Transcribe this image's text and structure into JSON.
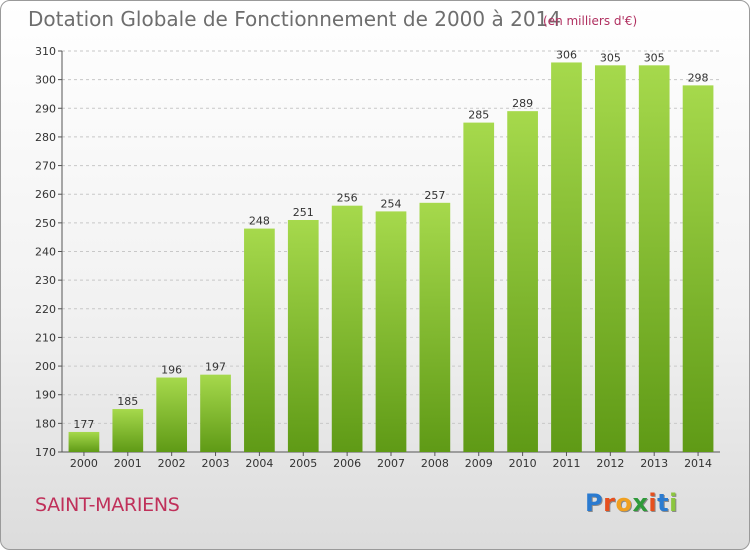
{
  "header": {
    "title": "Dotation Globale de Fonctionnement de 2000 à 2014",
    "subtitle": "(en milliers d'€)"
  },
  "footer": {
    "commune": "SAINT-MARIENS",
    "logo_letters": [
      "P",
      "r",
      "o",
      "x",
      "i",
      "t",
      "i"
    ],
    "logo_colors": [
      "#2b7bd0",
      "#e6501e",
      "#f0a020",
      "#2f9a3a",
      "#e6501e",
      "#2b7bd0",
      "#8cc63f"
    ]
  },
  "colors": {
    "bar_light": "#a6d94c",
    "bar_dark": "#5f9a16",
    "grid": "#c8c8c8"
  },
  "chart_data": {
    "type": "bar",
    "title": "Dotation Globale de Fonctionnement de 2000 à 2014",
    "subtitle": "(en milliers d'€)",
    "xlabel": "",
    "ylabel": "",
    "categories": [
      "2000",
      "2001",
      "2002",
      "2003",
      "2004",
      "2005",
      "2006",
      "2007",
      "2008",
      "2009",
      "2010",
      "2011",
      "2012",
      "2013",
      "2014"
    ],
    "values": [
      177,
      185,
      196,
      197,
      248,
      251,
      256,
      254,
      257,
      285,
      289,
      306,
      305,
      305,
      298
    ],
    "ylim": [
      170,
      310
    ],
    "yticks": [
      170,
      180,
      190,
      200,
      210,
      220,
      230,
      240,
      250,
      260,
      270,
      280,
      290,
      300,
      310
    ],
    "grid": true,
    "legend": "none"
  }
}
